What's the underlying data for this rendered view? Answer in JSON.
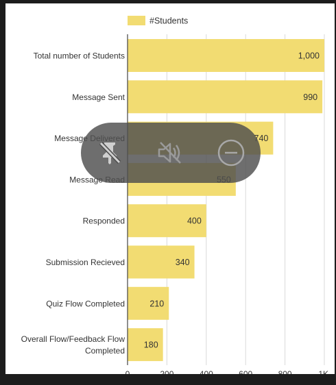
{
  "chart_data": {
    "type": "bar",
    "orientation": "horizontal",
    "categories": [
      "Total number of Students",
      "Message Sent",
      "Message Delivered",
      "Message Read",
      "Responded",
      "Submission Recieved",
      "Quiz Flow Completed",
      "Overall Flow/Feedback Flow Completed"
    ],
    "category_lines": [
      [
        "Total number of Students"
      ],
      [
        "Message Sent"
      ],
      [
        "Message Delivered"
      ],
      [
        "Message Read"
      ],
      [
        "Responded"
      ],
      [
        "Submission Recieved"
      ],
      [
        "Quiz Flow Completed"
      ],
      [
        "Overall Flow/Feedback Flow",
        "Completed"
      ]
    ],
    "series": [
      {
        "name": "#Students",
        "values": [
          1000,
          990,
          740,
          550,
          400,
          340,
          210,
          180
        ],
        "value_labels": [
          "1,000",
          "990",
          "740",
          "550",
          "400",
          "340",
          "210",
          "180"
        ],
        "color": "#f2dc72"
      }
    ],
    "xlim": [
      0,
      1000
    ],
    "xticks": [
      0,
      200,
      400,
      600,
      800,
      1000
    ],
    "xtick_labels": [
      "0",
      "200",
      "400",
      "600",
      "800",
      "1K"
    ],
    "grid": true,
    "legend_position": "top-center"
  },
  "overlay": {
    "icons": [
      "pin-off-icon",
      "volume-off-icon",
      "minus-circle-icon"
    ]
  },
  "colors": {
    "bar": "#f2dc72",
    "grid": "#d9d9d9",
    "text": "#333333",
    "overlay": "#4e4e4e"
  }
}
